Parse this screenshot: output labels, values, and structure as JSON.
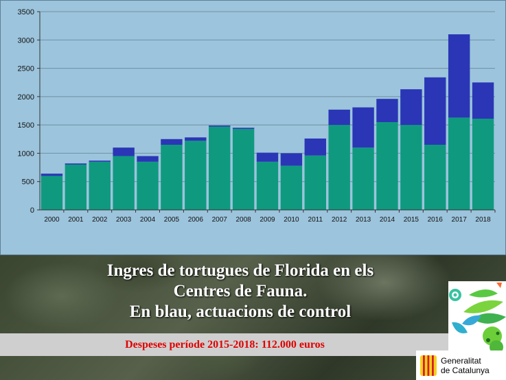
{
  "chart_data": {
    "type": "bar",
    "stacked": true,
    "categories": [
      "2000",
      "2001",
      "2002",
      "2003",
      "2004",
      "2005",
      "2006",
      "2007",
      "2008",
      "2009",
      "2010",
      "2011",
      "2012",
      "2013",
      "2014",
      "2015",
      "2016",
      "2017",
      "2018"
    ],
    "series": [
      {
        "values": [
          600,
          800,
          850,
          950,
          850,
          1150,
          1220,
          1470,
          1430,
          850,
          780,
          960,
          1500,
          1100,
          1550,
          1500,
          1150,
          1630,
          1610
        ],
        "color": "#0f9a80"
      },
      {
        "values": [
          40,
          20,
          20,
          150,
          100,
          100,
          60,
          20,
          20,
          160,
          220,
          300,
          270,
          710,
          410,
          630,
          1190,
          1470,
          640
        ],
        "color": "#2a36b5"
      }
    ],
    "ylim": [
      0,
      3500
    ],
    "yticks": [
      0,
      500,
      1000,
      1500,
      2000,
      2500,
      3000,
      3500
    ],
    "grid": true
  },
  "caption": {
    "lines": [
      "Ingres de tortugues de Florida en els",
      "Centres de Fauna.",
      "En blau, actuacions de control"
    ]
  },
  "cost_note": "Despeses període 2015-2018: 112.000 euros",
  "logo": {
    "line1": "Generalitat",
    "line2": "de Catalunya"
  },
  "colors": {
    "panel_bg": "#9cc4dc",
    "gridline": "#6e8fa3",
    "caption_text": "#ffffff",
    "cost_text": "#e00000",
    "flag_yellow": "#f7d11e",
    "flag_red": "#d41e26"
  }
}
